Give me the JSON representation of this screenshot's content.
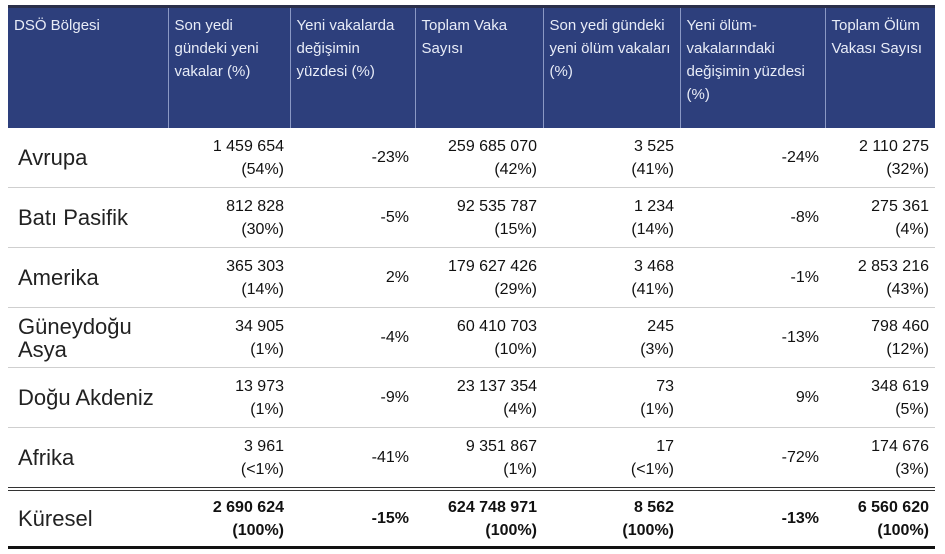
{
  "headers": [
    "DSÖ Bölgesi",
    "Son yedi gündeki yeni vakalar (%)",
    "Yeni vakalarda değişimin yüzdesi (%)",
    "Toplam Vaka Sayısı",
    "Son yedi gündeki yeni ölüm vakaları (%)",
    "Yeni ölüm-vakalarındaki değişimin yüzdesi (%)",
    "Toplam Ölüm Vakası Sayısı"
  ],
  "rows": [
    {
      "region": "Avrupa",
      "new_cases": "1 459 654",
      "new_cases_pct": "(54%)",
      "change": "-23%",
      "total": "259 685 070",
      "total_pct": "(42%)",
      "deaths": "3 525",
      "deaths_pct": "(41%)",
      "death_change": "-24%",
      "total_deaths": "2 110 275",
      "total_deaths_pct": "(32%)"
    },
    {
      "region": "Batı Pasifik",
      "new_cases": "812 828",
      "new_cases_pct": "(30%)",
      "change": "-5%",
      "total": "92 535 787",
      "total_pct": "(15%)",
      "deaths": "1 234",
      "deaths_pct": "(14%)",
      "death_change": "-8%",
      "total_deaths": "275 361",
      "total_deaths_pct": "(4%)"
    },
    {
      "region": "Amerika",
      "new_cases": "365 303",
      "new_cases_pct": "(14%)",
      "change": "2%",
      "total": "179 627 426",
      "total_pct": "(29%)",
      "deaths": "3 468",
      "deaths_pct": "(41%)",
      "death_change": "-1%",
      "total_deaths": "2 853 216",
      "total_deaths_pct": "(43%)"
    },
    {
      "region": "Güneydoğu Asya",
      "new_cases": "34 905",
      "new_cases_pct": "(1%)",
      "change": "-4%",
      "total": "60 410 703",
      "total_pct": "(10%)",
      "deaths": "245",
      "deaths_pct": "(3%)",
      "death_change": "-13%",
      "total_deaths": "798 460",
      "total_deaths_pct": "(12%)"
    },
    {
      "region": "Doğu Akdeniz",
      "new_cases": "13 973",
      "new_cases_pct": "(1%)",
      "change": "-9%",
      "total": "23 137 354",
      "total_pct": "(4%)",
      "deaths": "73",
      "deaths_pct": "(1%)",
      "death_change": "9%",
      "total_deaths": "348 619",
      "total_deaths_pct": "(5%)"
    },
    {
      "region": "Afrika",
      "new_cases": "3 961",
      "new_cases_pct": "(<1%)",
      "change": "-41%",
      "total": "9 351 867",
      "total_pct": "(1%)",
      "deaths": "17",
      "deaths_pct": "(<1%)",
      "death_change": "-72%",
      "total_deaths": "174 676",
      "total_deaths_pct": "(3%)"
    },
    {
      "region": "Küresel",
      "new_cases": "2 690 624",
      "new_cases_pct": "(100%)",
      "change": "-15%",
      "total": "624 748 971",
      "total_pct": "(100%)",
      "deaths": "8 562",
      "deaths_pct": "(100%)",
      "death_change": "-13%",
      "total_deaths": "6 560 620",
      "total_deaths_pct": "(100%)"
    }
  ]
}
